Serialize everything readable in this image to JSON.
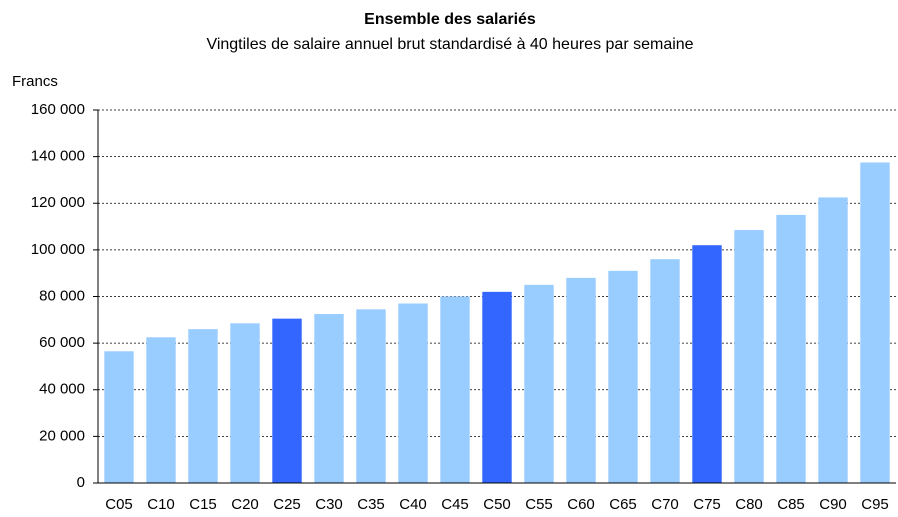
{
  "chart_data": {
    "type": "bar",
    "title": "Ensemble des salariés",
    "subtitle": "Vingtiles de salaire annuel brut standardisé à 40 heures par semaine",
    "y_label": "Francs",
    "categories": [
      "C05",
      "C10",
      "C15",
      "C20",
      "C25",
      "C30",
      "C35",
      "C40",
      "C45",
      "C50",
      "C55",
      "C60",
      "C65",
      "C70",
      "C75",
      "C80",
      "C85",
      "C90",
      "C95"
    ],
    "values": [
      56500,
      62500,
      66000,
      68500,
      70500,
      72500,
      74500,
      77000,
      80000,
      82000,
      85000,
      88000,
      91000,
      96000,
      102000,
      108500,
      115000,
      122500,
      137500
    ],
    "colors": [
      "#99ccff",
      "#99ccff",
      "#99ccff",
      "#99ccff",
      "#3366ff",
      "#99ccff",
      "#99ccff",
      "#99ccff",
      "#99ccff",
      "#3366ff",
      "#99ccff",
      "#99ccff",
      "#99ccff",
      "#99ccff",
      "#3366ff",
      "#99ccff",
      "#99ccff",
      "#99ccff",
      "#99ccff"
    ],
    "ylim": [
      0,
      160000
    ],
    "yticks": [
      0,
      {
        "value": 20000,
        "label": "20 000"
      },
      {
        "value": 40000,
        "label": "40 000"
      },
      {
        "value": 60000,
        "label": "60 000"
      },
      {
        "value": 80000,
        "label": "80 000"
      },
      {
        "value": 100000,
        "label": "100 000"
      },
      {
        "value": 120000,
        "label": "120 000"
      },
      {
        "value": 140000,
        "label": "140 000"
      },
      {
        "value": 160000,
        "label": "160 000"
      }
    ],
    "grid": true
  }
}
